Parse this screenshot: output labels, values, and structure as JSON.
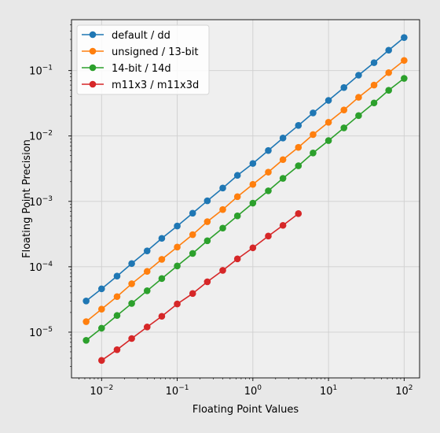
{
  "chart_data": {
    "type": "line",
    "xlabel": "Floating Point Values",
    "ylabel": "Floating Point Precision",
    "xscale": "log",
    "yscale": "log",
    "xlim": [
      0.004,
      160
    ],
    "ylim": [
      2e-06,
      0.6
    ],
    "grid": true,
    "legend_position": "top-left",
    "x_ticks": [
      {
        "value": 0.01,
        "base": "10",
        "exp": "−2"
      },
      {
        "value": 0.1,
        "base": "10",
        "exp": "−1"
      },
      {
        "value": 1,
        "base": "10",
        "exp": "0"
      },
      {
        "value": 10,
        "base": "10",
        "exp": "1"
      },
      {
        "value": 100,
        "base": "10",
        "exp": "2"
      }
    ],
    "y_ticks": [
      {
        "value": 1e-05,
        "base": "10",
        "exp": "−5"
      },
      {
        "value": 0.0001,
        "base": "10",
        "exp": "−4"
      },
      {
        "value": 0.001,
        "base": "10",
        "exp": "−3"
      },
      {
        "value": 0.01,
        "base": "10",
        "exp": "−2"
      },
      {
        "value": 0.1,
        "base": "10",
        "exp": "−1"
      }
    ],
    "series": [
      {
        "name": "default / dd",
        "color": "#1f77b4",
        "x": [
          0.00625,
          0.01,
          0.016,
          0.025,
          0.04,
          0.0625,
          0.1,
          0.16,
          0.25,
          0.4,
          0.625,
          1,
          1.6,
          2.5,
          4,
          6.25,
          10,
          16,
          25,
          40,
          62.5,
          100
        ],
        "y": [
          3e-05,
          4.6e-05,
          7.2e-05,
          0.000112,
          0.000175,
          0.000272,
          0.00042,
          0.00066,
          0.00102,
          0.0016,
          0.0025,
          0.0038,
          0.006,
          0.0093,
          0.0145,
          0.0225,
          0.035,
          0.055,
          0.085,
          0.132,
          0.205,
          0.32
        ]
      },
      {
        "name": "unsigned / 13-bit",
        "color": "#ff7f0e",
        "x": [
          0.00625,
          0.01,
          0.016,
          0.025,
          0.04,
          0.0625,
          0.1,
          0.16,
          0.25,
          0.4,
          0.625,
          1,
          1.6,
          2.5,
          4,
          6.25,
          10,
          16,
          25,
          40,
          62.5,
          100
        ],
        "y": [
          1.45e-05,
          2.25e-05,
          3.5e-05,
          5.5e-05,
          8.5e-05,
          0.00013,
          0.0002,
          0.00031,
          0.00049,
          0.00075,
          0.00118,
          0.00182,
          0.0028,
          0.00435,
          0.0067,
          0.0105,
          0.0162,
          0.025,
          0.039,
          0.06,
          0.093,
          0.143
        ]
      },
      {
        "name": "14-bit / 14d",
        "color": "#2ca02c",
        "x": [
          0.00625,
          0.01,
          0.016,
          0.025,
          0.04,
          0.0625,
          0.1,
          0.16,
          0.25,
          0.4,
          0.625,
          1,
          1.6,
          2.5,
          4,
          6.25,
          10,
          16,
          25,
          40,
          62.5,
          100
        ],
        "y": [
          7.5e-06,
          1.15e-05,
          1.8e-05,
          2.75e-05,
          4.3e-05,
          6.6e-05,
          0.000103,
          0.00016,
          0.00025,
          0.00039,
          0.0006,
          0.00094,
          0.00145,
          0.00225,
          0.0035,
          0.0055,
          0.0085,
          0.0133,
          0.0205,
          0.032,
          0.05,
          0.076
        ]
      },
      {
        "name": "m11x3 / m11x3d",
        "color": "#d62728",
        "x": [
          0.01,
          0.016,
          0.025,
          0.04,
          0.0625,
          0.1,
          0.16,
          0.25,
          0.4,
          0.625,
          1,
          1.6,
          2.5,
          4
        ],
        "y": [
          3.7e-06,
          5.4e-06,
          8e-06,
          1.2e-05,
          1.75e-05,
          2.7e-05,
          3.9e-05,
          5.9e-05,
          8.8e-05,
          0.000132,
          0.000195,
          0.000295,
          0.00043,
          0.00065
        ]
      }
    ]
  }
}
